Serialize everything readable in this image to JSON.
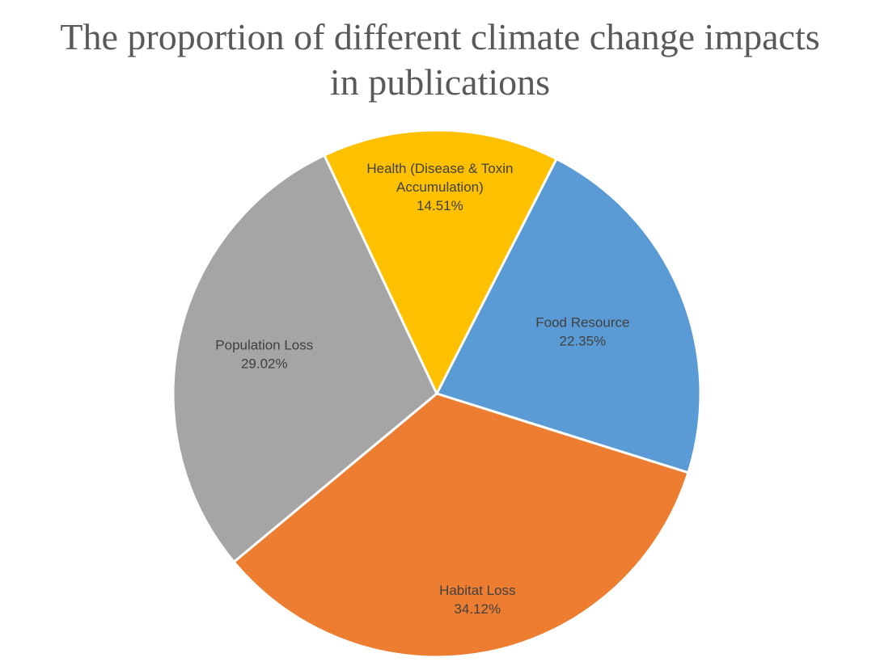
{
  "chart_data": {
    "type": "pie",
    "title_lines": [
      "The proportion of different climate change impacts",
      "in publications"
    ],
    "slices": [
      {
        "label_lines": [
          "Food Resource"
        ],
        "value": 22.35,
        "value_label": "22.35%",
        "color": "#5B9BD5"
      },
      {
        "label_lines": [
          "Habitat Loss"
        ],
        "value": 34.12,
        "value_label": "34.12%",
        "color": "#ED7D31"
      },
      {
        "label_lines": [
          "Population Loss"
        ],
        "value": 29.02,
        "value_label": "29.02%",
        "color": "#A5A5A5"
      },
      {
        "label_lines": [
          "Health (Disease & Toxin",
          "Accumulation)"
        ],
        "value": 14.51,
        "value_label": "14.51%",
        "color": "#FFC000"
      }
    ],
    "start_angle_deg": 27,
    "direction": "clockwise",
    "legend": "none",
    "data_labels": "inside"
  }
}
